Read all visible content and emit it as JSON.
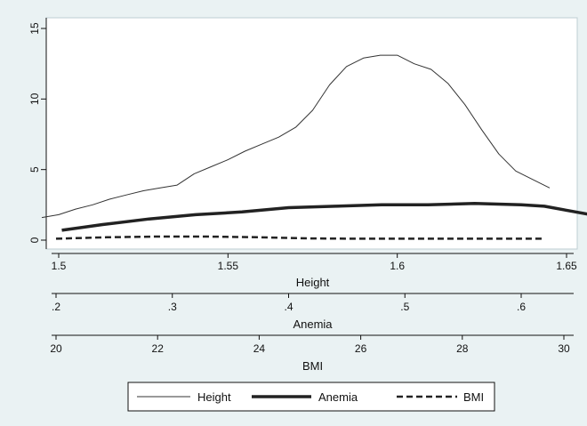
{
  "chart_data": {
    "type": "line",
    "grid": false,
    "legend_position": "bottom",
    "y_axis": {
      "range": [
        0,
        15
      ],
      "ticks": [
        0,
        5,
        10,
        15
      ]
    },
    "x_axes": [
      {
        "key": "height",
        "title": "Height",
        "range": [
          1.495,
          1.65
        ],
        "ticks": [
          1.5,
          1.55,
          1.6,
          1.65
        ],
        "tick_labels": [
          "1.5",
          "1.55",
          "1.6",
          "1.65"
        ]
      },
      {
        "key": "anemia",
        "title": "Anemia",
        "range": [
          0.2,
          0.68
        ],
        "ticks": [
          0.2,
          0.3,
          0.4,
          0.5,
          0.6
        ],
        "tick_labels": [
          ".2",
          ".3",
          ".4",
          ".5",
          ".6"
        ]
      },
      {
        "key": "bmi",
        "title": "BMI",
        "range": [
          20,
          30
        ],
        "ticks": [
          20,
          22,
          24,
          26,
          28,
          30
        ],
        "tick_labels": [
          "20",
          "22",
          "24",
          "26",
          "28",
          "30"
        ]
      }
    ],
    "series": [
      {
        "name": "Height",
        "axis": "height",
        "style": "thin",
        "color": "#333333",
        "points": [
          [
            1.495,
            1.6
          ],
          [
            1.5,
            1.8
          ],
          [
            1.505,
            2.2
          ],
          [
            1.51,
            2.5
          ],
          [
            1.515,
            2.9
          ],
          [
            1.52,
            3.2
          ],
          [
            1.525,
            3.5
          ],
          [
            1.53,
            3.7
          ],
          [
            1.535,
            3.9
          ],
          [
            1.54,
            4.7
          ],
          [
            1.545,
            5.2
          ],
          [
            1.55,
            5.7
          ],
          [
            1.555,
            6.3
          ],
          [
            1.56,
            6.8
          ],
          [
            1.565,
            7.3
          ],
          [
            1.57,
            8.0
          ],
          [
            1.575,
            9.2
          ],
          [
            1.58,
            11.0
          ],
          [
            1.585,
            12.3
          ],
          [
            1.59,
            12.9
          ],
          [
            1.595,
            13.1
          ],
          [
            1.6,
            13.1
          ],
          [
            1.605,
            12.5
          ],
          [
            1.61,
            12.1
          ],
          [
            1.615,
            11.1
          ],
          [
            1.62,
            9.6
          ],
          [
            1.625,
            7.8
          ],
          [
            1.63,
            6.1
          ],
          [
            1.635,
            4.9
          ],
          [
            1.64,
            4.3
          ],
          [
            1.645,
            3.7
          ]
        ]
      },
      {
        "name": "Anemia",
        "axis": "anemia",
        "style": "thick",
        "color": "#222222",
        "points": [
          [
            0.205,
            0.7
          ],
          [
            0.24,
            1.1
          ],
          [
            0.28,
            1.5
          ],
          [
            0.32,
            1.8
          ],
          [
            0.36,
            2.0
          ],
          [
            0.4,
            2.3
          ],
          [
            0.44,
            2.4
          ],
          [
            0.48,
            2.5
          ],
          [
            0.52,
            2.5
          ],
          [
            0.56,
            2.6
          ],
          [
            0.6,
            2.5
          ],
          [
            0.62,
            2.4
          ],
          [
            0.64,
            2.1
          ],
          [
            0.66,
            1.8
          ],
          [
            0.678,
            1.5
          ]
        ]
      },
      {
        "name": "BMI",
        "axis": "bmi",
        "style": "dashed",
        "color": "#222222",
        "points": [
          [
            20,
            0.1
          ],
          [
            21,
            0.2
          ],
          [
            22,
            0.25
          ],
          [
            23,
            0.25
          ],
          [
            24,
            0.2
          ],
          [
            25,
            0.12
          ],
          [
            26,
            0.1
          ],
          [
            27,
            0.1
          ],
          [
            28,
            0.1
          ],
          [
            29,
            0.1
          ],
          [
            29.6,
            0.1
          ]
        ]
      }
    ]
  }
}
